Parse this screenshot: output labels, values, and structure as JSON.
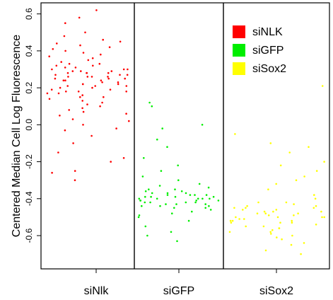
{
  "chart_data": {
    "type": "scatter",
    "ylabel": "Centered Median Cell Log Fluorescence",
    "ylim": [
      -0.78,
      0.66
    ],
    "yticks": [
      "-0.6",
      "-0.4",
      "-0.2",
      "0.0",
      "0.2",
      "0.4",
      "0.6"
    ],
    "ytick_values": [
      -0.6,
      -0.4,
      -0.2,
      0.0,
      0.2,
      0.4,
      0.6
    ],
    "categories": [
      "siNlk",
      "siGFP",
      "siSox2"
    ],
    "grid": false,
    "legend_position": "top-right",
    "series": [
      {
        "name": "siNLK",
        "category": "siNlk",
        "color": "#ff0000",
        "y": [
          0.28,
          0.32,
          0.25,
          0.18,
          0.22,
          0.35,
          0.3,
          0.27,
          0.21,
          0.15,
          0.33,
          0.29,
          0.24,
          0.19,
          0.26,
          0.31,
          0.23,
          0.17,
          0.36,
          0.28,
          0.2,
          0.14,
          0.25,
          0.3,
          0.27,
          0.22,
          0.18,
          0.34,
          0.29,
          0.26,
          0.12,
          0.08,
          0.05,
          0.02,
          0.0,
          -0.03,
          -0.06,
          -0.1,
          -0.15,
          -0.2,
          -0.25,
          -0.3,
          -0.26,
          -0.18,
          0.4,
          0.45,
          0.5,
          0.55,
          0.62,
          0.58,
          0.42,
          0.38,
          0.44,
          0.48,
          0.39,
          0.41,
          0.37,
          0.43,
          0.46,
          0.1,
          0.06,
          0.03,
          0.09,
          0.11,
          0.13,
          -0.02,
          0.07,
          0.16,
          0.21,
          0.24,
          0.28,
          0.32,
          0.26,
          0.19,
          0.23,
          0.27,
          0.3,
          0.22,
          0.25,
          0.33,
          0.2,
          0.17,
          0.29,
          0.31,
          0.24,
          0.18,
          0.15,
          0.26,
          0.28,
          0.21
        ]
      },
      {
        "name": "siGFP",
        "category": "siGFP",
        "color": "#00ee00",
        "y": [
          -0.4,
          -0.38,
          -0.42,
          -0.45,
          -0.36,
          -0.41,
          -0.39,
          -0.44,
          -0.37,
          -0.43,
          -0.35,
          -0.4,
          -0.46,
          -0.33,
          -0.41,
          -0.39,
          -0.42,
          -0.38,
          -0.47,
          -0.34,
          -0.4,
          -0.43,
          -0.37,
          -0.44,
          -0.39,
          -0.41,
          -0.36,
          -0.45,
          -0.38,
          -0.42,
          -0.3,
          -0.28,
          -0.25,
          -0.22,
          -0.18,
          -0.12,
          -0.08,
          -0.02,
          0.0,
          0.12,
          0.1,
          -0.5,
          -0.52,
          -0.55,
          -0.58,
          -0.6,
          -0.63,
          -0.48,
          -0.49,
          -0.32,
          -0.35,
          -0.4,
          -0.43,
          -0.39,
          -0.41,
          -0.38,
          -0.44,
          -0.37,
          -0.42,
          -0.4
        ]
      },
      {
        "name": "siSox2",
        "category": "siSox2",
        "color": "#ffff00",
        "y": [
          -0.5,
          -0.45,
          -0.55,
          -0.48,
          -0.52,
          -0.42,
          -0.58,
          -0.47,
          -0.53,
          -0.44,
          -0.56,
          -0.49,
          -0.51,
          -0.4,
          -0.6,
          -0.46,
          -0.54,
          -0.43,
          -0.57,
          -0.5,
          -0.38,
          -0.35,
          -0.32,
          -0.3,
          -0.28,
          -0.25,
          -0.22,
          -0.2,
          -0.15,
          -0.12,
          -0.1,
          -0.05,
          0.21,
          -0.62,
          -0.65,
          -0.68,
          -0.7,
          -0.64,
          -0.61,
          -0.59,
          -0.45,
          -0.48,
          -0.52,
          -0.55,
          -0.47,
          -0.5,
          -0.53,
          -0.46,
          -0.49,
          -0.51,
          -0.44,
          -0.56,
          -0.42,
          -0.58,
          -0.47,
          -0.5,
          -0.53,
          -0.48,
          -0.45,
          -0.52
        ]
      }
    ]
  }
}
